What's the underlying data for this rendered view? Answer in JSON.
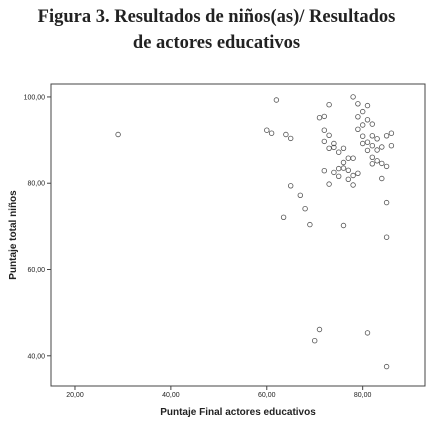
{
  "figure": {
    "title_line1": "Figura 3. Resultados de niños(as)/ Resultados",
    "title_line2": "de actores educativos"
  },
  "chart_data": {
    "type": "scatter",
    "title": "Figura 3. Resultados de niños(as)/ Resultados de actores educativos",
    "xlabel": "Puntaje Final actores educativos",
    "ylabel": "Puntaje total niños",
    "xlim": [
      15,
      93
    ],
    "ylim": [
      33,
      103
    ],
    "xticks": [
      "20,00",
      "40,00",
      "60,00",
      "80,00"
    ],
    "xtick_values": [
      20,
      40,
      60,
      80
    ],
    "yticks": [
      "40,00",
      "60,00",
      "80,00",
      "100,00"
    ],
    "ytick_values": [
      40,
      60,
      80,
      100
    ],
    "grid": false,
    "marker": "open-circle",
    "points": [
      [
        29,
        91.3
      ],
      [
        62,
        99.3
      ],
      [
        60,
        92.3
      ],
      [
        61,
        91.6
      ],
      [
        64,
        91.3
      ],
      [
        65,
        90.4
      ],
      [
        65,
        79.4
      ],
      [
        67,
        77.2
      ],
      [
        68,
        74.1
      ],
      [
        63.5,
        72.1
      ],
      [
        69,
        70.4
      ],
      [
        72,
        95.5
      ],
      [
        71,
        95.2
      ],
      [
        73,
        98.2
      ],
      [
        72,
        92.3
      ],
      [
        73,
        91.1
      ],
      [
        72,
        89.7
      ],
      [
        74,
        89.2
      ],
      [
        73,
        88.1
      ],
      [
        74,
        88.3
      ],
      [
        76,
        88.1
      ],
      [
        75,
        87.2
      ],
      [
        77,
        85.8
      ],
      [
        76,
        84.8
      ],
      [
        75,
        83.4
      ],
      [
        74,
        82.5
      ],
      [
        75,
        81.6
      ],
      [
        72,
        82.9
      ],
      [
        73,
        79.8
      ],
      [
        77,
        80.9
      ],
      [
        78,
        79.6
      ],
      [
        76,
        83.5
      ],
      [
        77,
        83.0
      ],
      [
        78,
        81.8
      ],
      [
        79,
        82.3
      ],
      [
        78,
        100.0
      ],
      [
        79,
        98.4
      ],
      [
        81,
        98.0
      ],
      [
        80,
        96.6
      ],
      [
        79,
        95.4
      ],
      [
        81,
        94.7
      ],
      [
        82,
        93.7
      ],
      [
        80,
        93.5
      ],
      [
        79,
        92.5
      ],
      [
        80,
        90.9
      ],
      [
        82,
        91.0
      ],
      [
        83,
        90.3
      ],
      [
        80,
        89.2
      ],
      [
        81,
        89.5
      ],
      [
        82,
        88.7
      ],
      [
        83,
        87.7
      ],
      [
        84,
        88.4
      ],
      [
        81,
        87.6
      ],
      [
        82,
        86.0
      ],
      [
        83,
        85.2
      ],
      [
        84,
        84.6
      ],
      [
        85,
        83.9
      ],
      [
        86,
        88.7
      ],
      [
        85,
        91.0
      ],
      [
        86,
        91.6
      ],
      [
        84,
        81.1
      ],
      [
        82,
        84.5
      ],
      [
        78,
        85.8
      ],
      [
        85,
        75.5
      ],
      [
        85,
        67.5
      ],
      [
        76,
        70.2
      ],
      [
        71,
        46.1
      ],
      [
        70,
        43.5
      ],
      [
        81,
        45.3
      ],
      [
        85,
        37.5
      ]
    ]
  }
}
